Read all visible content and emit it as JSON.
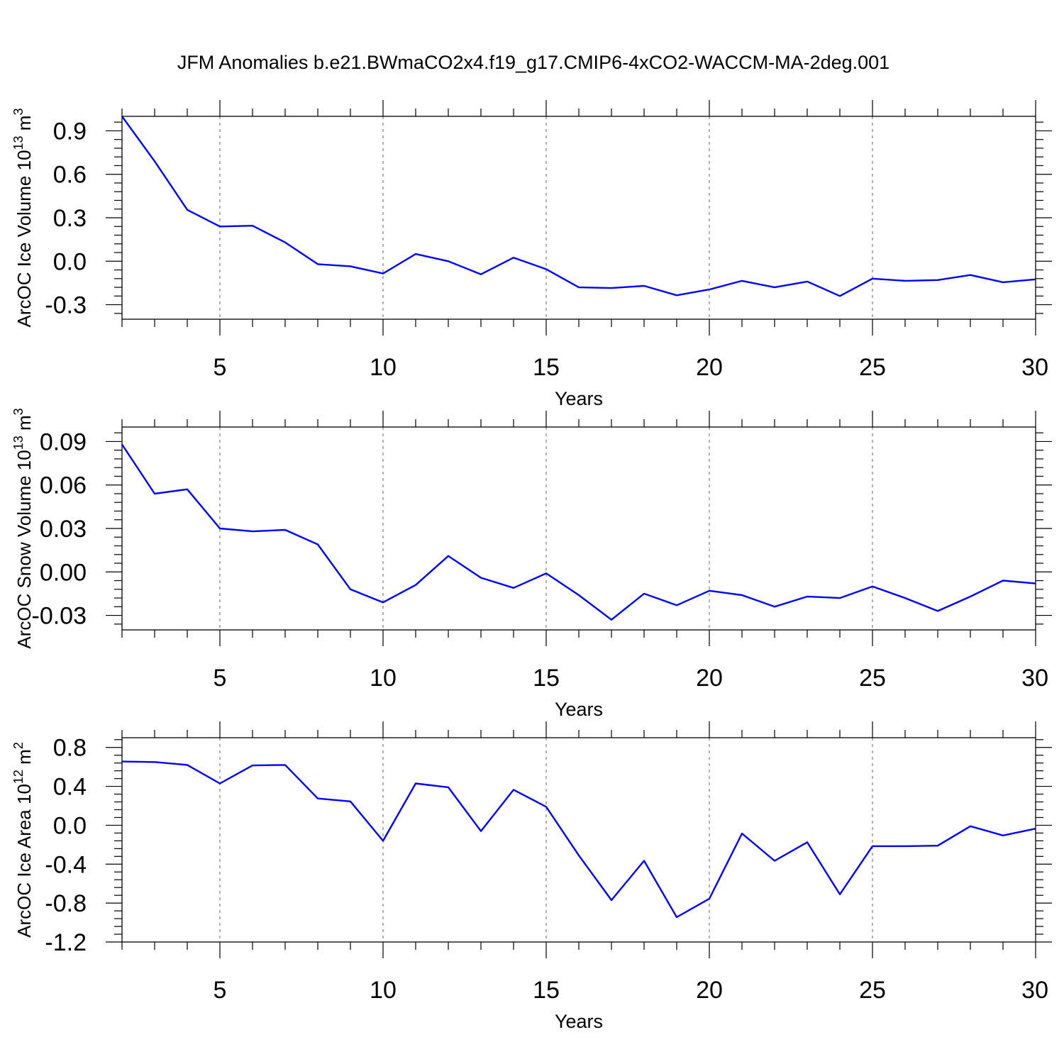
{
  "title": "JFM Anomalies b.e21.BWmaCO2x4.f19_g17.CMIP6-4xCO2-WACCM-MA-2deg.001",
  "line_color": "#0000ff",
  "chart_data": [
    {
      "type": "line",
      "ylabel": "ArcOC Ice Volume 10",
      "yunit_exponent": "13",
      "yunit_suffix": " m",
      "yunit_power": "3",
      "xlabel": "Years",
      "xlim": [
        2,
        30
      ],
      "ylim": [
        -0.4,
        1.0
      ],
      "x_ticks": [
        5,
        10,
        15,
        20,
        25,
        30
      ],
      "y_ticks": [
        0.9,
        0.6,
        0.3,
        0.0,
        -0.3
      ],
      "y_tick_labels": [
        "0.9",
        "0.6",
        "0.3",
        "0.0",
        "-0.3"
      ],
      "x": [
        2,
        3,
        4,
        5,
        6,
        7,
        8,
        9,
        10,
        11,
        12,
        13,
        14,
        15,
        16,
        17,
        18,
        19,
        20,
        21,
        22,
        23,
        24,
        25,
        26,
        27,
        28,
        29,
        30
      ],
      "y": [
        1.0,
        0.69,
        0.355,
        0.24,
        0.245,
        0.13,
        -0.02,
        -0.035,
        -0.085,
        0.05,
        0.0,
        -0.09,
        0.025,
        -0.055,
        -0.18,
        -0.185,
        -0.17,
        -0.235,
        -0.195,
        -0.135,
        -0.18,
        -0.14,
        -0.24,
        -0.12,
        -0.135,
        -0.13,
        -0.095,
        -0.145,
        -0.125
      ]
    },
    {
      "type": "line",
      "ylabel": "ArcOC Snow Volume 10",
      "yunit_exponent": "13",
      "yunit_suffix": " m",
      "yunit_power": "3",
      "xlabel": "Years",
      "xlim": [
        2,
        30
      ],
      "ylim": [
        -0.04,
        0.1
      ],
      "x_ticks": [
        5,
        10,
        15,
        20,
        25,
        30
      ],
      "y_ticks": [
        0.09,
        0.06,
        0.03,
        0.0,
        -0.03
      ],
      "y_tick_labels": [
        "0.09",
        "0.06",
        "0.03",
        "0.00",
        "-0.03"
      ],
      "x": [
        2,
        3,
        4,
        5,
        6,
        7,
        8,
        9,
        10,
        11,
        12,
        13,
        14,
        15,
        16,
        17,
        18,
        19,
        20,
        21,
        22,
        23,
        24,
        25,
        26,
        27,
        28,
        29,
        30
      ],
      "y": [
        0.088,
        0.054,
        0.057,
        0.03,
        0.028,
        0.029,
        0.019,
        -0.012,
        -0.021,
        -0.009,
        0.011,
        -0.004,
        -0.011,
        -0.001,
        -0.016,
        -0.033,
        -0.015,
        -0.023,
        -0.013,
        -0.016,
        -0.024,
        -0.017,
        -0.018,
        -0.01,
        -0.018,
        -0.027,
        -0.017,
        -0.006,
        -0.008
      ]
    },
    {
      "type": "line",
      "ylabel": "ArcOC Ice Area 10",
      "yunit_exponent": "12",
      "yunit_suffix": " m",
      "yunit_power": "2",
      "xlabel": "Years",
      "xlim": [
        2,
        30
      ],
      "ylim": [
        -1.2,
        0.9
      ],
      "x_ticks": [
        5,
        10,
        15,
        20,
        25,
        30
      ],
      "y_ticks": [
        0.8,
        0.4,
        0.0,
        -0.4,
        -0.8,
        -1.2
      ],
      "y_tick_labels": [
        "0.8",
        "0.4",
        "0.0",
        "-0.4",
        "-0.8",
        "-1.2"
      ],
      "x": [
        2,
        3,
        4,
        5,
        6,
        7,
        8,
        9,
        10,
        11,
        12,
        13,
        14,
        15,
        16,
        17,
        18,
        19,
        20,
        21,
        22,
        23,
        24,
        25,
        26,
        27,
        28,
        29,
        30
      ],
      "y": [
        0.655,
        0.65,
        0.62,
        0.43,
        0.615,
        0.62,
        0.275,
        0.245,
        -0.16,
        0.43,
        0.39,
        -0.06,
        0.365,
        0.19,
        -0.31,
        -0.77,
        -0.365,
        -0.945,
        -0.755,
        -0.085,
        -0.365,
        -0.175,
        -0.71,
        -0.215,
        -0.215,
        -0.21,
        -0.01,
        -0.105,
        -0.035
      ]
    }
  ]
}
